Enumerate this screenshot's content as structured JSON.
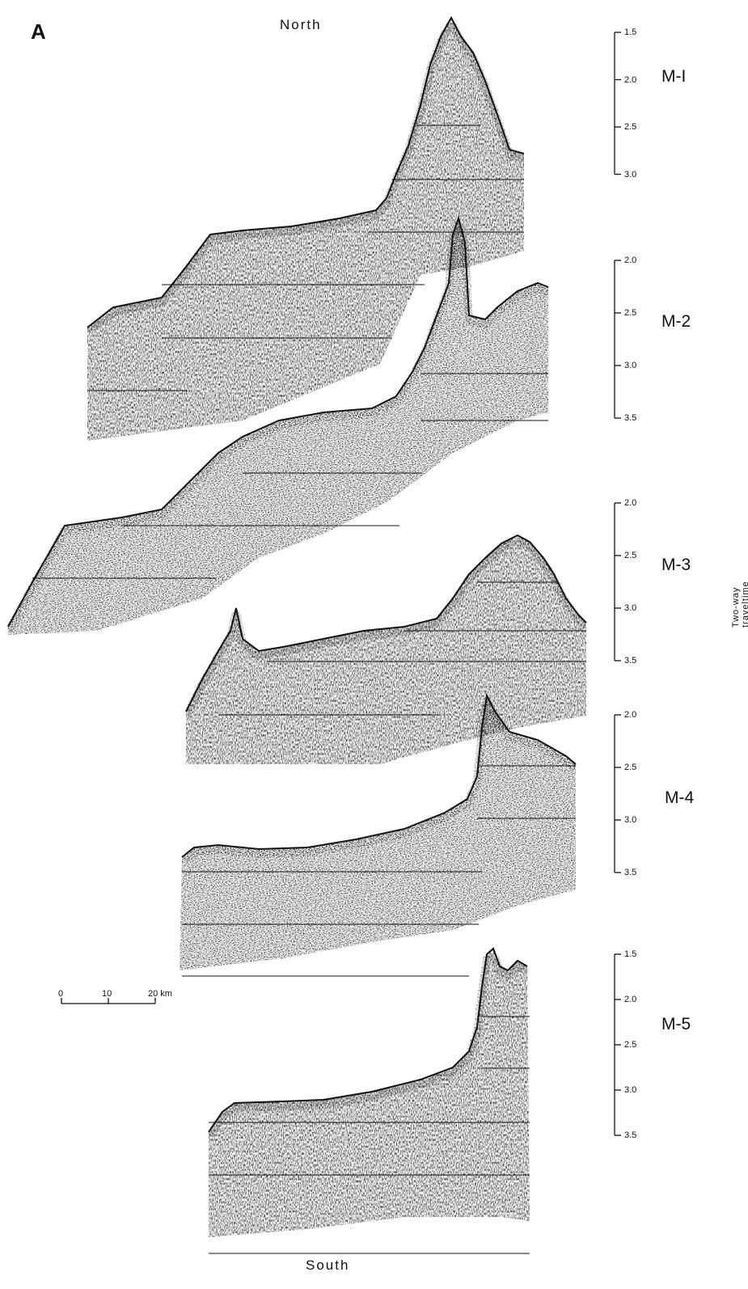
{
  "figure": {
    "panel_letter": "A",
    "north_label": "North",
    "south_label": "South",
    "y_axis_label": "Two-way traveltime (s)",
    "ink_color": "#111111",
    "background_color": "#ffffff"
  },
  "profiles": [
    {
      "label": "M-I",
      "scale_ticks": [
        "1.5",
        "2.0",
        "2.5",
        "3.0"
      ]
    },
    {
      "label": "M-2",
      "scale_ticks": [
        "2.0",
        "2.5",
        "3.0",
        "3.5"
      ]
    },
    {
      "label": "M-3",
      "scale_ticks": [
        "2.0",
        "2.5",
        "3.0",
        "3.5"
      ]
    },
    {
      "label": "M-4",
      "scale_ticks": [
        "2.0",
        "2.5",
        "3.0",
        "3.5"
      ]
    },
    {
      "label": "M-5",
      "scale_ticks": [
        "1.5",
        "2.0",
        "2.5",
        "3.0",
        "3.5"
      ]
    }
  ],
  "scale_bar": {
    "labels": [
      "0",
      "10",
      "20 km"
    ],
    "values_km": [
      0,
      10,
      20
    ]
  }
}
